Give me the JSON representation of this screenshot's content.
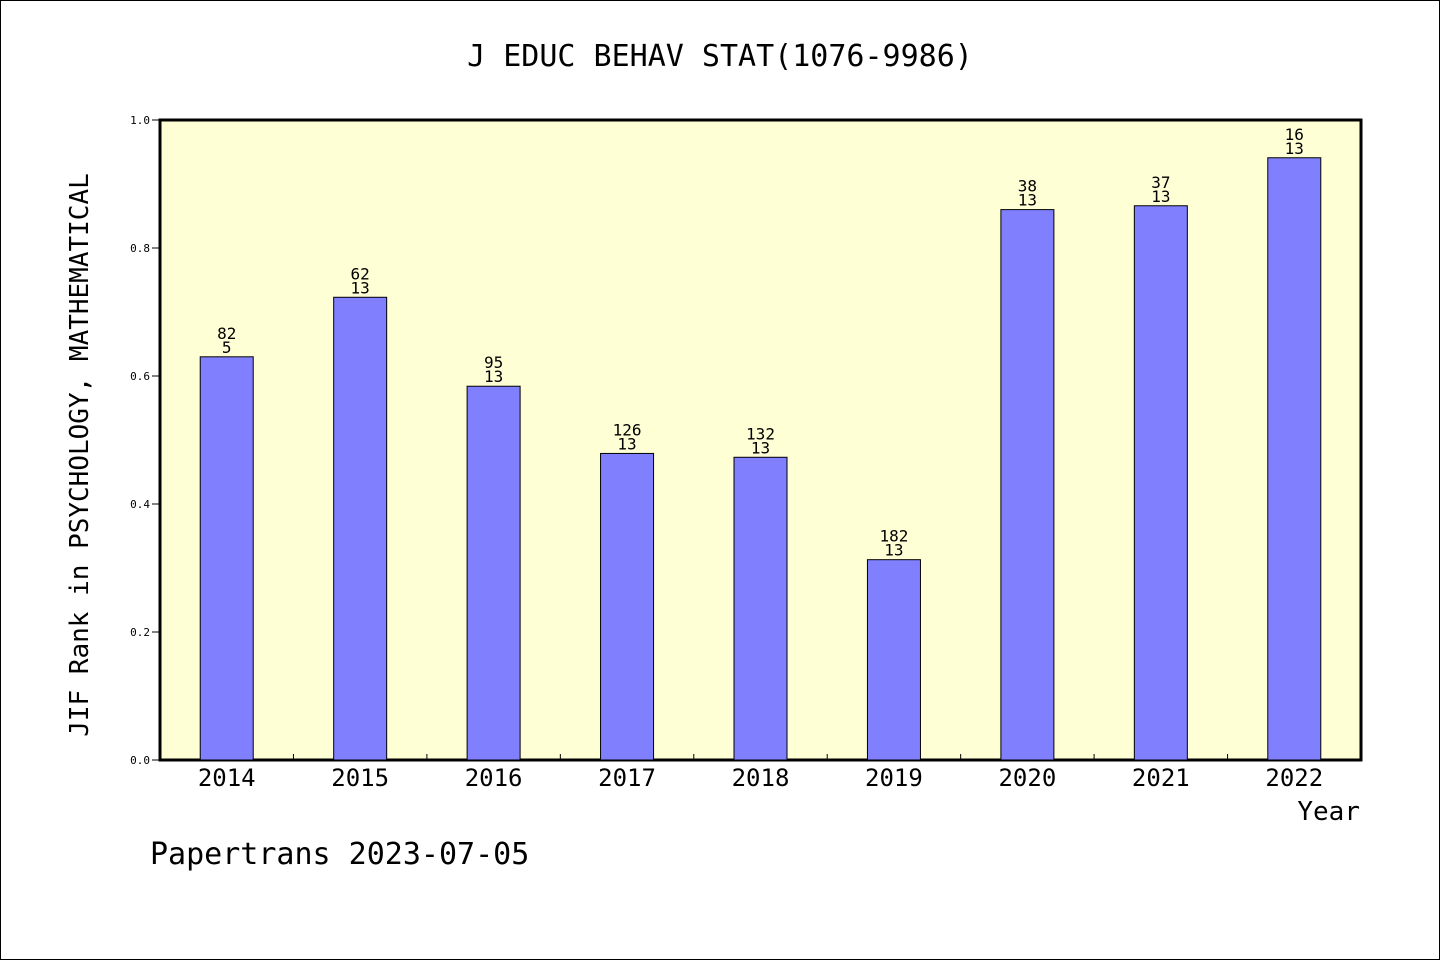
{
  "chart_data": {
    "type": "bar",
    "title": "J EDUC BEHAV STAT(1076-9986)",
    "xlabel": "Year",
    "ylabel": "JIF Rank in PSYCHOLOGY, MATHEMATICAL",
    "categories": [
      "2014",
      "2015",
      "2016",
      "2017",
      "2018",
      "2019",
      "2020",
      "2021",
      "2022"
    ],
    "values": [
      0.63,
      0.723,
      0.584,
      0.479,
      0.473,
      0.313,
      0.86,
      0.866,
      0.941
    ],
    "bar_labels": [
      [
        "82",
        "5"
      ],
      [
        "62",
        "13"
      ],
      [
        "95",
        "13"
      ],
      [
        "126",
        "13"
      ],
      [
        "132",
        "13"
      ],
      [
        "182",
        "13"
      ],
      [
        "38",
        "13"
      ],
      [
        "37",
        "13"
      ],
      [
        "16",
        "13"
      ]
    ],
    "ylim": [
      0,
      1.0
    ],
    "yticks": [
      "0.0",
      "0.2",
      "0.4",
      "0.6",
      "0.8",
      "1.0"
    ],
    "grid": false,
    "legend": "none",
    "colors": {
      "bar": "#8080ff",
      "plot_background": "#ffffd5",
      "axis": "#000000"
    }
  },
  "footer": {
    "credit": "Papertrans 2023-07-05"
  }
}
